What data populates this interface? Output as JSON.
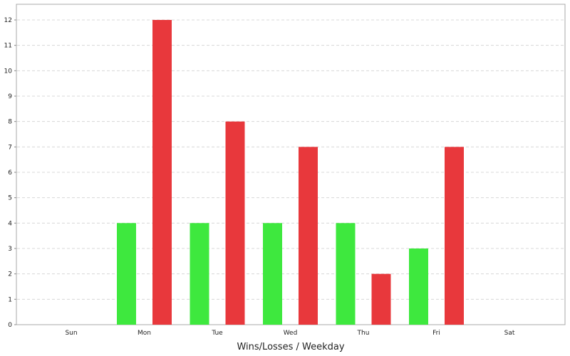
{
  "chart_data": {
    "type": "bar",
    "title": "",
    "xlabel": "Wins/Losses / Weekday",
    "ylabel": "",
    "categories": [
      "Sun",
      "Mon",
      "Tue",
      "Wed",
      "Thu",
      "Fri",
      "Sat"
    ],
    "series": [
      {
        "color": "#3ee83e",
        "values": [
          0,
          4,
          4,
          4,
          4,
          3,
          0
        ]
      },
      {
        "color": "#e8383c",
        "values": [
          0,
          12,
          8,
          7,
          2,
          7,
          0
        ]
      }
    ],
    "ylim": [
      0,
      12
    ],
    "yticks": [
      0,
      1,
      2,
      3,
      4,
      5,
      6,
      7,
      8,
      9,
      10,
      11,
      12
    ],
    "grid": true,
    "legend": "none"
  }
}
